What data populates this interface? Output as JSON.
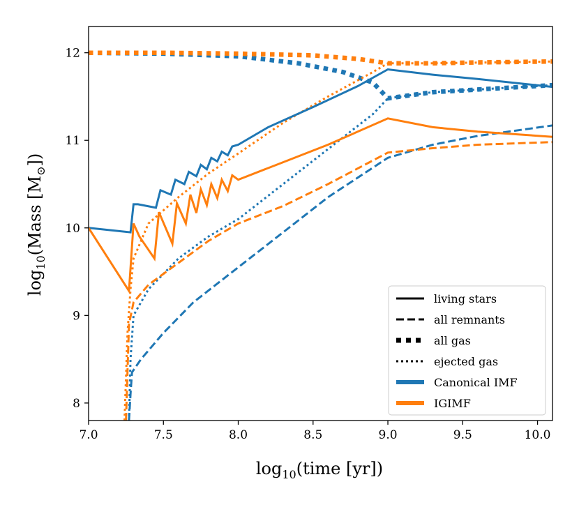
{
  "chart_data": {
    "type": "line",
    "xlabel_main": "log",
    "xlabel_sub": "10",
    "xlabel_rest": "(time [yr])",
    "ylabel_main": "log",
    "ylabel_sub": "10",
    "ylabel_rest": "(Mass [M",
    "ylabel_sun_sub": "⊙",
    "ylabel_close": "])",
    "xlim": [
      7.0,
      10.1
    ],
    "ylim": [
      7.8,
      12.3
    ],
    "xticks": [
      7.0,
      7.5,
      8.0,
      8.5,
      9.0,
      9.5,
      10.0
    ],
    "xtick_labels": [
      "7.0",
      "7.5",
      "8.0",
      "8.5",
      "9.0",
      "9.5",
      "10.0"
    ],
    "yticks": [
      8,
      9,
      10,
      11,
      12
    ],
    "ytick_labels": [
      "8",
      "9",
      "10",
      "11",
      "12"
    ],
    "colors": {
      "canonical": "#1f77b4",
      "igimf": "#ff7f0e",
      "legend_style": "#000000"
    },
    "legend": {
      "placement": "lower-right",
      "style_entries": [
        {
          "label": "living stars",
          "style": "solid"
        },
        {
          "label": "all remnants",
          "style": "dashed"
        },
        {
          "label": "all gas",
          "style": "square-dotted"
        },
        {
          "label": "ejected gas",
          "style": "dotted"
        }
      ],
      "color_entries": [
        {
          "label": "Canonical IMF",
          "color_key": "canonical"
        },
        {
          "label": "IGIMF",
          "color_key": "igimf"
        }
      ]
    },
    "series": [
      {
        "name": "Canonical IMF all gas",
        "color_key": "canonical",
        "style": "square-dotted",
        "x": [
          7.0,
          7.5,
          8.0,
          8.4,
          8.7,
          8.9,
          9.0,
          9.3,
          9.6,
          10.1
        ],
        "y": [
          12.0,
          11.99,
          11.96,
          11.88,
          11.78,
          11.66,
          11.48,
          11.55,
          11.58,
          11.63
        ]
      },
      {
        "name": "IGIMF all gas",
        "color_key": "igimf",
        "style": "square-dotted",
        "x": [
          7.0,
          7.5,
          8.0,
          8.5,
          8.8,
          9.0,
          9.3,
          9.6,
          10.1
        ],
        "y": [
          12.0,
          12.0,
          11.99,
          11.97,
          11.93,
          11.88,
          11.88,
          11.89,
          11.9
        ]
      },
      {
        "name": "Canonical IMF ejected gas",
        "color_key": "canonical",
        "style": "dotted",
        "x": [
          7.27,
          7.28,
          7.3,
          7.4,
          7.6,
          7.8,
          8.0,
          8.3,
          8.6,
          8.9,
          9.0,
          9.3,
          9.6,
          10.1
        ],
        "y": [
          7.8,
          8.5,
          9.0,
          9.3,
          9.65,
          9.9,
          10.1,
          10.5,
          10.9,
          11.3,
          11.48,
          11.55,
          11.58,
          11.63
        ]
      },
      {
        "name": "IGIMF ejected gas",
        "color_key": "igimf",
        "style": "dotted",
        "x": [
          7.24,
          7.26,
          7.28,
          7.3,
          7.4,
          7.6,
          7.8,
          8.0,
          8.3,
          8.6,
          8.9,
          9.0,
          9.3,
          10.1
        ],
        "y": [
          7.8,
          8.8,
          9.3,
          9.65,
          10.05,
          10.35,
          10.62,
          10.85,
          11.2,
          11.5,
          11.78,
          11.88,
          11.88,
          11.9
        ]
      },
      {
        "name": "Canonical IMF all remnants",
        "color_key": "canonical",
        "style": "dashed",
        "x": [
          7.27,
          7.28,
          7.29,
          7.35,
          7.5,
          7.7,
          8.0,
          8.3,
          8.6,
          9.0,
          9.3,
          9.6,
          10.1
        ],
        "y": [
          7.8,
          8.1,
          8.35,
          8.5,
          8.8,
          9.15,
          9.55,
          9.95,
          10.35,
          10.8,
          10.95,
          11.05,
          11.17
        ]
      },
      {
        "name": "IGIMF all remnants",
        "color_key": "igimf",
        "style": "dashed",
        "x": [
          7.25,
          7.27,
          7.3,
          7.4,
          7.6,
          7.8,
          8.0,
          8.3,
          8.6,
          9.0,
          9.3,
          9.6,
          10.1
        ],
        "y": [
          7.8,
          8.9,
          9.15,
          9.35,
          9.6,
          9.85,
          10.05,
          10.25,
          10.5,
          10.86,
          10.91,
          10.95,
          10.98
        ]
      },
      {
        "name": "Canonical IMF living stars",
        "color_key": "canonical",
        "style": "solid",
        "x": [
          7.0,
          7.28,
          7.3,
          7.33,
          7.45,
          7.48,
          7.55,
          7.58,
          7.64,
          7.67,
          7.72,
          7.75,
          7.79,
          7.82,
          7.86,
          7.89,
          7.93,
          7.96,
          8.0,
          8.2,
          8.5,
          8.8,
          9.0,
          9.3,
          9.6,
          10.1
        ],
        "y": [
          10.0,
          9.95,
          10.27,
          10.27,
          10.23,
          10.43,
          10.38,
          10.55,
          10.5,
          10.64,
          10.59,
          10.72,
          10.67,
          10.8,
          10.76,
          10.87,
          10.83,
          10.93,
          10.95,
          11.15,
          11.38,
          11.62,
          11.81,
          11.75,
          11.7,
          11.61
        ]
      },
      {
        "name": "IGIMF living stars",
        "color_key": "igimf",
        "style": "solid",
        "x": [
          7.0,
          7.27,
          7.3,
          7.34,
          7.44,
          7.47,
          7.56,
          7.59,
          7.65,
          7.68,
          7.72,
          7.75,
          7.79,
          7.82,
          7.86,
          7.89,
          7.93,
          7.96,
          8.0,
          8.3,
          8.6,
          9.0,
          9.3,
          9.6,
          10.1
        ],
        "y": [
          10.0,
          9.28,
          10.05,
          9.9,
          9.65,
          10.18,
          9.82,
          10.28,
          10.05,
          10.38,
          10.17,
          10.44,
          10.26,
          10.5,
          10.34,
          10.55,
          10.42,
          10.6,
          10.55,
          10.75,
          10.95,
          11.25,
          11.15,
          11.1,
          11.04
        ]
      }
    ]
  }
}
